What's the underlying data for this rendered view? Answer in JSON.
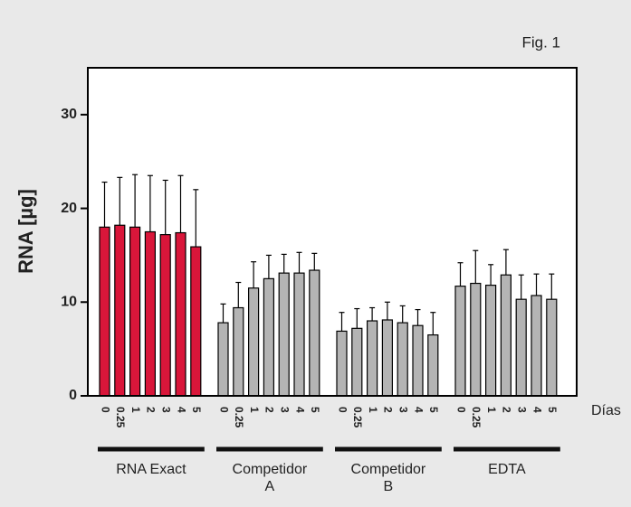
{
  "chart_data": {
    "type": "bar",
    "title": "Fig. 1",
    "y_label": "RNA [µg]",
    "x_label": "Días",
    "categories": [
      "0",
      "0.25",
      "1",
      "2",
      "3",
      "4",
      "5"
    ],
    "ylim": [
      0,
      35
    ],
    "yticks": [
      0,
      10,
      20,
      30
    ],
    "series": [
      {
        "name": "RNA Exact",
        "color": "#d9163a",
        "values": [
          18.0,
          18.2,
          18.0,
          17.5,
          17.2,
          17.4,
          15.9
        ],
        "errors": [
          4.8,
          5.1,
          5.6,
          6.0,
          5.8,
          6.1,
          6.1
        ]
      },
      {
        "name": "Competidor A",
        "color": "#b4b4b4",
        "values": [
          7.8,
          9.4,
          11.5,
          12.5,
          13.1,
          13.1,
          13.4
        ],
        "errors": [
          2.0,
          2.7,
          2.8,
          2.5,
          2.0,
          2.2,
          1.8
        ]
      },
      {
        "name": "Competidor B",
        "color": "#b4b4b4",
        "values": [
          6.9,
          7.2,
          8.0,
          8.1,
          7.8,
          7.5,
          6.5
        ],
        "errors": [
          2.0,
          2.1,
          1.4,
          1.9,
          1.8,
          1.7,
          2.4
        ]
      },
      {
        "name": "EDTA",
        "color": "#b4b4b4",
        "values": [
          11.7,
          12.0,
          11.8,
          12.9,
          10.3,
          10.7,
          10.3
        ],
        "errors": [
          2.5,
          3.5,
          2.2,
          2.7,
          2.6,
          2.3,
          2.7
        ]
      }
    ]
  }
}
